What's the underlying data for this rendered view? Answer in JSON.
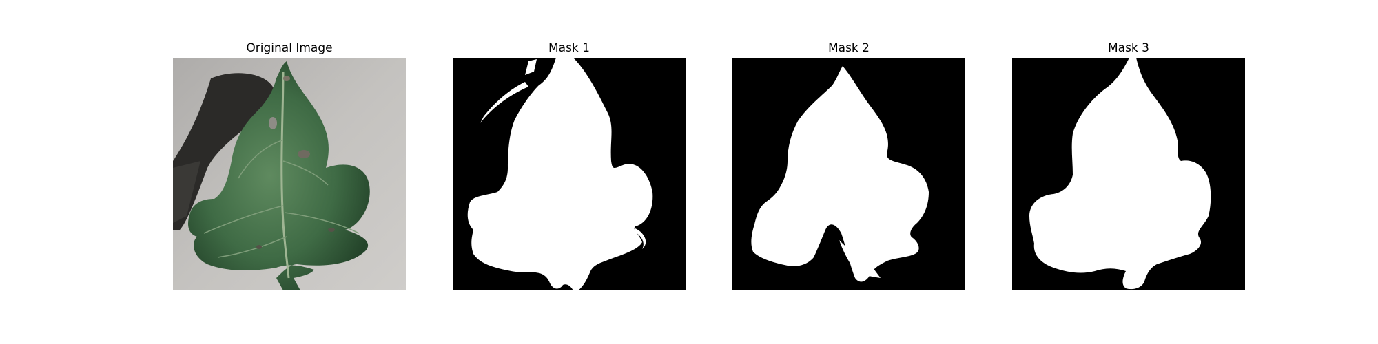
{
  "panels": [
    {
      "title": "Original Image",
      "content": "leaf-photo"
    },
    {
      "title": "Mask 1",
      "content": "binary-mask"
    },
    {
      "title": "Mask 2",
      "content": "binary-mask"
    },
    {
      "title": "Mask 3",
      "content": "binary-mask"
    }
  ],
  "colors": {
    "background": "#ffffff",
    "mask_foreground": "#ffffff",
    "mask_background": "#000000",
    "leaf_green": "#3f6b45",
    "photo_backdrop": "#bcbab6"
  }
}
